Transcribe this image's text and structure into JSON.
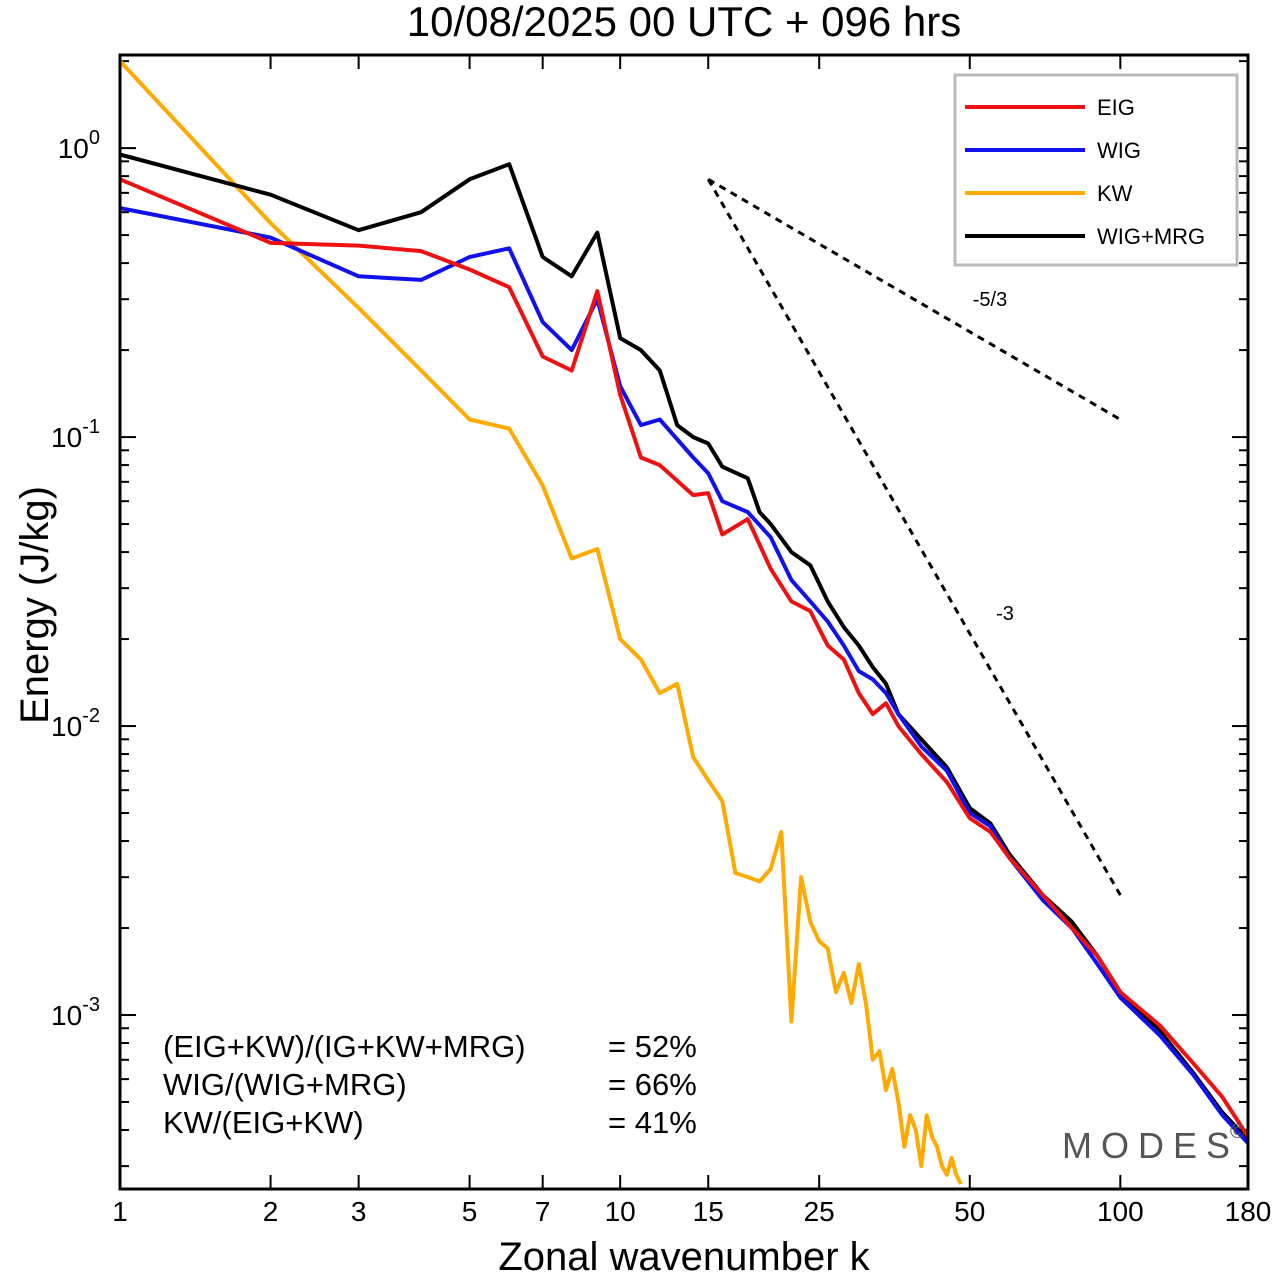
{
  "chart_data": {
    "type": "line",
    "title": "10/08/2025  00 UTC  + 096 hrs",
    "xlabel": "Zonal wavenumber k",
    "ylabel": "Energy (J/kg)",
    "xscale": "log",
    "yscale": "log",
    "xlim": [
      1,
      180
    ],
    "ylim": [
      0.00025,
      2.1
    ],
    "x_ticks": [
      1,
      2,
      3,
      5,
      7,
      10,
      15,
      25,
      50,
      100,
      180
    ],
    "x_tick_labels": [
      "1",
      "2",
      "3",
      "5",
      "7",
      "10",
      "15",
      "25",
      "50",
      "100",
      "180"
    ],
    "y_ticks": [
      {
        "value": 1,
        "base": "10",
        "exp": "0"
      },
      {
        "value": 0.1,
        "base": "10",
        "exp": "-1"
      },
      {
        "value": 0.01,
        "base": "10",
        "exp": "-2"
      },
      {
        "value": 0.001,
        "base": "10",
        "exp": "-3"
      }
    ],
    "series": [
      {
        "name": "EIG",
        "color": "#ee1111",
        "points": [
          [
            1,
            0.78
          ],
          [
            2,
            0.47
          ],
          [
            3,
            0.46
          ],
          [
            4,
            0.44
          ],
          [
            5,
            0.38
          ],
          [
            6,
            0.33
          ],
          [
            7,
            0.19
          ],
          [
            8,
            0.17
          ],
          [
            9,
            0.32
          ],
          [
            10,
            0.14
          ],
          [
            11,
            0.085
          ],
          [
            12,
            0.08
          ],
          [
            14,
            0.063
          ],
          [
            15,
            0.064
          ],
          [
            16,
            0.046
          ],
          [
            18,
            0.052
          ],
          [
            20,
            0.035
          ],
          [
            22,
            0.027
          ],
          [
            24,
            0.025
          ],
          [
            26,
            0.019
          ],
          [
            28,
            0.017
          ],
          [
            30,
            0.013
          ],
          [
            32,
            0.011
          ],
          [
            34,
            0.012
          ],
          [
            36,
            0.01
          ],
          [
            40,
            0.008
          ],
          [
            45,
            0.0064
          ],
          [
            50,
            0.0048
          ],
          [
            55,
            0.0043
          ],
          [
            60,
            0.0035
          ],
          [
            70,
            0.0026
          ],
          [
            80,
            0.002
          ],
          [
            90,
            0.0016
          ],
          [
            100,
            0.0012
          ],
          [
            120,
            0.00092
          ],
          [
            140,
            0.00068
          ],
          [
            160,
            0.00052
          ],
          [
            180,
            0.00038
          ]
        ]
      },
      {
        "name": "WIG",
        "color": "#1111ee",
        "points": [
          [
            1,
            0.62
          ],
          [
            2,
            0.49
          ],
          [
            3,
            0.36
          ],
          [
            4,
            0.35
          ],
          [
            5,
            0.42
          ],
          [
            6,
            0.45
          ],
          [
            7,
            0.25
          ],
          [
            8,
            0.2
          ],
          [
            9,
            0.3
          ],
          [
            10,
            0.15
          ],
          [
            11,
            0.11
          ],
          [
            12,
            0.115
          ],
          [
            14,
            0.085
          ],
          [
            15,
            0.075
          ],
          [
            16,
            0.06
          ],
          [
            18,
            0.055
          ],
          [
            20,
            0.045
          ],
          [
            22,
            0.032
          ],
          [
            24,
            0.027
          ],
          [
            26,
            0.023
          ],
          [
            28,
            0.019
          ],
          [
            30,
            0.0155
          ],
          [
            32,
            0.0145
          ],
          [
            34,
            0.013
          ],
          [
            36,
            0.011
          ],
          [
            40,
            0.0085
          ],
          [
            45,
            0.007
          ],
          [
            50,
            0.005
          ],
          [
            55,
            0.0045
          ],
          [
            60,
            0.0035
          ],
          [
            70,
            0.0025
          ],
          [
            80,
            0.002
          ],
          [
            90,
            0.0015
          ],
          [
            100,
            0.00115
          ],
          [
            120,
            0.00085
          ],
          [
            140,
            0.00062
          ],
          [
            160,
            0.00045
          ],
          [
            180,
            0.00036
          ]
        ]
      },
      {
        "name": "KW",
        "color": "#ffaa00",
        "points": [
          [
            1,
            2.0
          ],
          [
            2,
            0.55
          ],
          [
            3,
            0.28
          ],
          [
            4,
            0.17
          ],
          [
            5,
            0.115
          ],
          [
            6,
            0.107
          ],
          [
            7,
            0.068
          ],
          [
            8,
            0.038
          ],
          [
            9,
            0.041
          ],
          [
            10,
            0.02
          ],
          [
            11,
            0.017
          ],
          [
            12,
            0.013
          ],
          [
            13,
            0.014
          ],
          [
            14,
            0.0078
          ],
          [
            15,
            0.0065
          ],
          [
            16,
            0.0055
          ],
          [
            17,
            0.0031
          ],
          [
            18,
            0.003
          ],
          [
            19,
            0.0029
          ],
          [
            20,
            0.0032
          ],
          [
            21,
            0.0043
          ],
          [
            22,
            0.00095
          ],
          [
            23,
            0.003
          ],
          [
            24,
            0.0021
          ],
          [
            25,
            0.0018
          ],
          [
            26,
            0.0017
          ],
          [
            27,
            0.0012
          ],
          [
            28,
            0.0014
          ],
          [
            29,
            0.0011
          ],
          [
            30,
            0.0015
          ],
          [
            31,
            0.0011
          ],
          [
            32,
            0.0007
          ],
          [
            33,
            0.00075
          ],
          [
            34,
            0.00055
          ],
          [
            35,
            0.00065
          ],
          [
            36,
            0.0005
          ],
          [
            37,
            0.00035
          ],
          [
            38,
            0.00045
          ],
          [
            39,
            0.0004
          ],
          [
            40,
            0.0003
          ],
          [
            41,
            0.00045
          ],
          [
            42,
            0.00038
          ],
          [
            43,
            0.00035
          ],
          [
            44,
            0.0003
          ],
          [
            45,
            0.00028
          ],
          [
            46,
            0.00032
          ],
          [
            47,
            0.00028
          ],
          [
            48,
            0.00026
          ]
        ]
      },
      {
        "name": "WIG+MRG",
        "color": "#000000",
        "points": [
          [
            1,
            0.95
          ],
          [
            2,
            0.69
          ],
          [
            3,
            0.52
          ],
          [
            4,
            0.6
          ],
          [
            5,
            0.78
          ],
          [
            6,
            0.88
          ],
          [
            7,
            0.42
          ],
          [
            8,
            0.36
          ],
          [
            9,
            0.51
          ],
          [
            10,
            0.22
          ],
          [
            11,
            0.2
          ],
          [
            12,
            0.17
          ],
          [
            13,
            0.11
          ],
          [
            14,
            0.1
          ],
          [
            15,
            0.095
          ],
          [
            16,
            0.079
          ],
          [
            18,
            0.072
          ],
          [
            19,
            0.055
          ],
          [
            20,
            0.05
          ],
          [
            22,
            0.04
          ],
          [
            24,
            0.036
          ],
          [
            26,
            0.027
          ],
          [
            28,
            0.022
          ],
          [
            30,
            0.019
          ],
          [
            32,
            0.016
          ],
          [
            34,
            0.014
          ],
          [
            36,
            0.011
          ],
          [
            40,
            0.009
          ],
          [
            45,
            0.0072
          ],
          [
            50,
            0.0052
          ],
          [
            55,
            0.0046
          ],
          [
            60,
            0.0036
          ],
          [
            70,
            0.0026
          ],
          [
            80,
            0.0021
          ],
          [
            90,
            0.0016
          ],
          [
            100,
            0.0012
          ],
          [
            120,
            0.00088
          ],
          [
            140,
            0.00063
          ],
          [
            160,
            0.00046
          ],
          [
            180,
            0.00037
          ]
        ]
      }
    ],
    "reference_lines": [
      {
        "label": "-5/3",
        "points": [
          [
            15,
            0.78
          ],
          [
            100,
            0.115
          ]
        ]
      },
      {
        "label": "-3",
        "points": [
          [
            15,
            0.78
          ],
          [
            100,
            0.0026
          ]
        ]
      }
    ],
    "legend_position": "top-right",
    "ratios": [
      {
        "label": "(EIG+KW)/(IG+KW+MRG)",
        "value": "= 52%"
      },
      {
        "label": "WIG/(WIG+MRG)",
        "value": "= 66%"
      },
      {
        "label": "KW/(EIG+KW)",
        "value": "= 41%"
      }
    ],
    "watermark": "MODES",
    "watermark_mark": "©"
  }
}
